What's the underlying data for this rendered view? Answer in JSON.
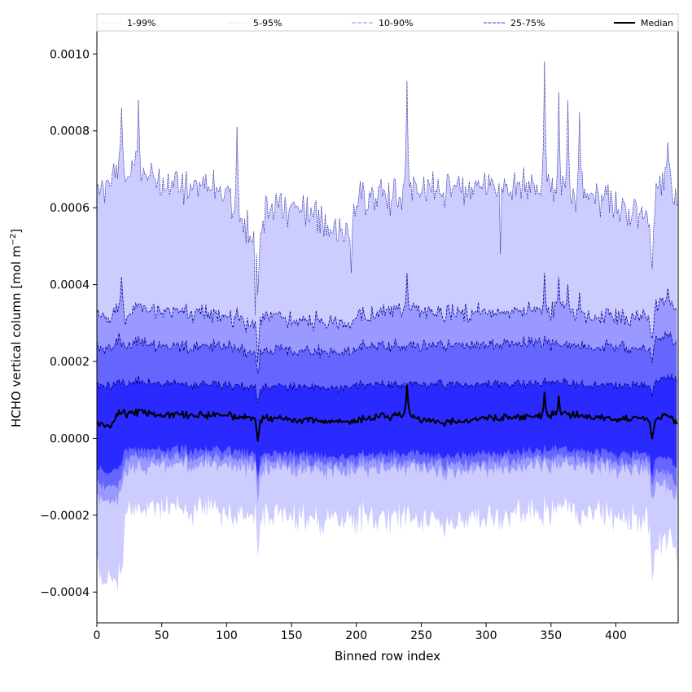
{
  "chart_data": {
    "type": "area",
    "title": "",
    "xlabel": "Binned row index",
    "ylabel_main": "HCHO vertical column [mol m",
    "ylabel_sup": "−2",
    "ylabel_close": "]",
    "xlim": [
      0,
      448
    ],
    "ylim": [
      -0.00048,
      0.00106
    ],
    "x_ticks": [
      0,
      50,
      100,
      150,
      200,
      250,
      300,
      350,
      400
    ],
    "x_tick_labels": [
      "0",
      "50",
      "100",
      "150",
      "200",
      "250",
      "300",
      "350",
      "400"
    ],
    "y_ticks": [
      -0.0004,
      -0.0002,
      0.0,
      0.0002,
      0.0004,
      0.0006,
      0.0008,
      0.001
    ],
    "y_tick_labels": [
      "−0.0004",
      "−0.0002",
      "0.0000",
      "0.0002",
      "0.0004",
      "0.0006",
      "0.0008",
      "0.0010"
    ],
    "grid": false,
    "legend_position": "top",
    "n_rows": 448,
    "legend": [
      {
        "label": "1-99%",
        "color": "#ccccff",
        "dash": "2,1",
        "width": 0.6
      },
      {
        "label": "5-95%",
        "color": "#9999ff",
        "dash": "1,1",
        "width": 0.6
      },
      {
        "label": "10-90%",
        "color": "#6666ff",
        "dash": "5,2",
        "width": 0.8
      },
      {
        "label": "25-75%",
        "color": "#3333ff",
        "dash": "4,1.5",
        "width": 1.0
      },
      {
        "label": "Median",
        "color": "#000000",
        "dash": "",
        "width": 2.0
      }
    ],
    "bands": [
      {
        "name": "1-99%",
        "color": "#ccccff"
      },
      {
        "name": "5-95%",
        "color": "#9999ff"
      },
      {
        "name": "10-90%",
        "color": "#6666ff"
      },
      {
        "name": "25-75%",
        "color": "#2a2aff"
      }
    ],
    "anchors": {
      "x": [
        0,
        10,
        16,
        20,
        22,
        30,
        50,
        100,
        122,
        124,
        126,
        150,
        196,
        200,
        239,
        250,
        265,
        300,
        345,
        356,
        380,
        400,
        426,
        428,
        430,
        440,
        447
      ],
      "p99": [
        0.00066,
        0.00064,
        0.00072,
        0.00072,
        0.00066,
        0.00071,
        0.00066,
        0.00064,
        0.00052,
        0.00042,
        0.00058,
        0.00061,
        0.00052,
        0.00062,
        0.00064,
        0.00065,
        0.00064,
        0.00065,
        0.00066,
        0.00064,
        0.00064,
        0.00061,
        0.00057,
        0.00045,
        0.00062,
        0.00069,
        0.00062
      ],
      "p95": [
        0.00032,
        0.00031,
        0.00035,
        0.00034,
        0.00031,
        0.00034,
        0.00033,
        0.00032,
        0.00029,
        0.00022,
        0.00031,
        0.00031,
        0.0003,
        0.00032,
        0.00033,
        0.00033,
        0.00032,
        0.00033,
        0.00033,
        0.00033,
        0.00032,
        0.00032,
        0.00031,
        0.00026,
        0.00034,
        0.00036,
        0.00034
      ],
      "p90": [
        0.00024,
        0.00023,
        0.00026,
        0.00025,
        0.00023,
        0.00025,
        0.00024,
        0.00024,
        0.00022,
        0.00017,
        0.00023,
        0.00023,
        0.00022,
        0.00024,
        0.00024,
        0.00024,
        0.00024,
        0.00024,
        0.00025,
        0.00024,
        0.00024,
        0.00024,
        0.00023,
        0.0002,
        0.00026,
        0.00027,
        0.00025
      ],
      "p75": [
        0.00014,
        0.000135,
        0.00015,
        0.00015,
        0.000135,
        0.00015,
        0.00014,
        0.00014,
        0.00013,
        9e-05,
        0.00013,
        0.000135,
        0.00013,
        0.00014,
        0.00014,
        0.00014,
        0.00014,
        0.00014,
        0.000145,
        0.000145,
        0.00014,
        0.00014,
        0.000135,
        0.00011,
        0.00015,
        0.00016,
        0.000155
      ],
      "p50": [
        4e-05,
        3e-05,
        6e-05,
        7e-05,
        6e-05,
        7e-05,
        6e-05,
        6e-05,
        5e-05,
        0.0,
        5e-05,
        5e-05,
        4e-05,
        5e-05,
        6e-05,
        5e-05,
        4e-05,
        5e-05,
        6e-05,
        6e-05,
        6e-05,
        5e-05,
        5e-05,
        0.0,
        5e-05,
        6e-05,
        4e-05
      ],
      "p25": [
        -8e-05,
        -9e-05,
        -8e-05,
        -6e-05,
        -3e-05,
        -3e-05,
        -3e-05,
        -3e-05,
        -4e-05,
        -0.0001,
        -4e-05,
        -4e-05,
        -5e-05,
        -4e-05,
        -4e-05,
        -4e-05,
        -5e-05,
        -4e-05,
        -3e-05,
        -3e-05,
        -3e-05,
        -4e-05,
        -4e-05,
        -0.0001,
        -5e-05,
        -5e-05,
        -8e-05
      ],
      "p10": [
        -0.00012,
        -0.00013,
        -0.00012,
        -9e-05,
        -5e-05,
        -5e-05,
        -5e-05,
        -5e-05,
        -6e-05,
        -0.00012,
        -6e-05,
        -6e-05,
        -7e-05,
        -6e-05,
        -6e-05,
        -6e-05,
        -7e-05,
        -6e-05,
        -5e-05,
        -5e-05,
        -5e-05,
        -6e-05,
        -6e-05,
        -0.00013,
        -9e-05,
        -9e-05,
        -0.00013
      ],
      "p5": [
        -0.00016,
        -0.00017,
        -0.00016,
        -0.00012,
        -8e-05,
        -8e-05,
        -7e-05,
        -7e-05,
        -8e-05,
        -0.00015,
        -8e-05,
        -8e-05,
        -9e-05,
        -8e-05,
        -8e-05,
        -8e-05,
        -9e-05,
        -8e-05,
        -7e-05,
        -7e-05,
        -7e-05,
        -8e-05,
        -9e-05,
        -0.00017,
        -0.00012,
        -0.00012,
        -0.00016
      ],
      "p1": [
        -0.00034,
        -0.00038,
        -0.00038,
        -0.00033,
        -0.0002,
        -0.00018,
        -0.00018,
        -0.00019,
        -0.0002,
        -0.00031,
        -0.0002,
        -0.0002,
        -0.00022,
        -0.00021,
        -0.00021,
        -0.00021,
        -0.00023,
        -0.00021,
        -0.00019,
        -0.00019,
        -0.00019,
        -0.0002,
        -0.00022,
        -0.00036,
        -0.00028,
        -0.00026,
        -0.0003
      ]
    },
    "spikes": [
      {
        "x": 19,
        "p99": 0.00086,
        "p95": 0.00042
      },
      {
        "x": 32,
        "p99": 0.00088,
        "p95": 0.00035
      },
      {
        "x": 108,
        "p99": 0.00081,
        "p95": 0.00034
      },
      {
        "x": 239,
        "p99": 0.00093,
        "p95": 0.00043,
        "p50": 0.00015
      },
      {
        "x": 345,
        "p99": 0.00098,
        "p95": 0.00043,
        "p50": 0.00012
      },
      {
        "x": 356,
        "p99": 0.0009,
        "p95": 0.00042,
        "p50": 0.00011
      },
      {
        "x": 363,
        "p99": 0.00088,
        "p95": 0.0004
      },
      {
        "x": 372,
        "p99": 0.00085,
        "p95": 0.00038
      },
      {
        "x": 440,
        "p99": 0.00077,
        "p95": 0.00039
      }
    ],
    "dips": [
      {
        "x": 122,
        "p99": 0.00032
      },
      {
        "x": 196,
        "p99": 0.00043
      },
      {
        "x": 311,
        "p99": 0.00048
      },
      {
        "x": 428,
        "p99": 0.00044
      }
    ]
  }
}
